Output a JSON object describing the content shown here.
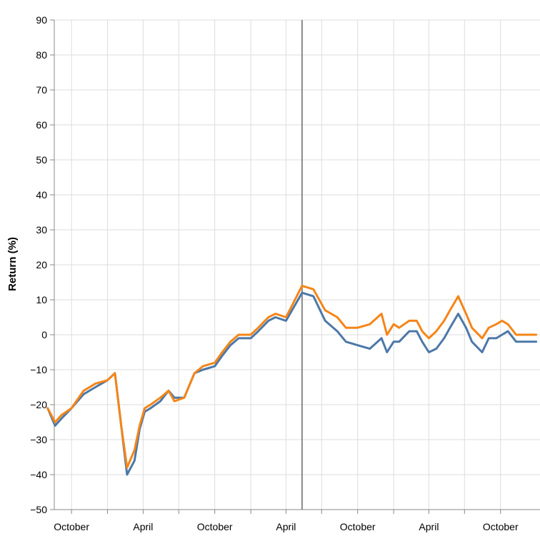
{
  "chart_data": {
    "type": "line",
    "title": "",
    "xlabel": "",
    "ylabel": "Return (%)",
    "ylim": [
      -50,
      90
    ],
    "yticks": [
      90,
      80,
      70,
      60,
      50,
      40,
      30,
      20,
      10,
      0,
      -10,
      -20,
      -30,
      -40,
      -50
    ],
    "ytick_labels": [
      "90",
      "80",
      "70",
      "60",
      "50",
      "40",
      "30",
      "20",
      "10",
      "0",
      "−10",
      "−20",
      "−30",
      "−40",
      "−50"
    ],
    "xlim": [
      "2019-08-01",
      "2022-12-31"
    ],
    "xtick_labels": [
      "October",
      "April",
      "October",
      "April",
      "October",
      "April",
      "October"
    ],
    "xtick_dates": [
      "2019-10-01",
      "2020-04-01",
      "2020-10-01",
      "2021-04-01",
      "2021-10-01",
      "2022-04-01",
      "2022-10-01"
    ],
    "x_gridlines": [
      "2019-10-01",
      "2020-01-01",
      "2020-04-01",
      "2020-07-01",
      "2020-10-01",
      "2021-01-01",
      "2021-04-01",
      "2021-07-01",
      "2021-10-01",
      "2022-01-01",
      "2022-04-01",
      "2022-07-01",
      "2022-10-01"
    ],
    "grid": true,
    "rule_date": "2021-05-12",
    "series": [
      {
        "color": "#4c78a8",
        "dates": [
          "2019-08-01",
          "2019-08-20",
          "2019-09-05",
          "2019-10-01",
          "2019-11-01",
          "2019-12-01",
          "2020-01-01",
          "2020-01-20",
          "2020-02-05",
          "2020-02-20",
          "2020-03-10",
          "2020-03-23",
          "2020-04-05",
          "2020-04-20",
          "2020-05-15",
          "2020-06-05",
          "2020-06-20",
          "2020-07-15",
          "2020-08-10",
          "2020-09-01",
          "2020-10-01",
          "2020-10-20",
          "2020-11-10",
          "2020-12-01",
          "2021-01-01",
          "2021-01-20",
          "2021-02-15",
          "2021-03-05",
          "2021-04-01",
          "2021-05-12",
          "2021-06-10",
          "2021-07-10",
          "2021-08-10",
          "2021-09-01",
          "2021-10-01",
          "2021-11-01",
          "2021-12-01",
          "2021-12-15",
          "2022-01-01",
          "2022-01-15",
          "2022-02-10",
          "2022-03-01",
          "2022-03-15",
          "2022-04-01",
          "2022-04-20",
          "2022-05-10",
          "2022-05-25",
          "2022-06-15",
          "2022-07-05",
          "2022-07-20",
          "2022-08-15",
          "2022-09-01",
          "2022-09-20",
          "2022-10-05",
          "2022-10-20",
          "2022-11-10",
          "2022-12-01",
          "2022-12-31"
        ],
        "values": [
          -21,
          -26,
          -24,
          -21,
          -17,
          -15,
          -13,
          -11,
          -26,
          -40,
          -36,
          -27,
          -22,
          -21,
          -19,
          -16,
          -18,
          -18,
          -11,
          -10,
          -9,
          -6,
          -3,
          -1,
          -1,
          1,
          4,
          5,
          4,
          12,
          11,
          4,
          1,
          -2,
          -3,
          -4,
          -1,
          -5,
          -2,
          -2,
          1,
          1,
          -2,
          -5,
          -4,
          -1,
          2,
          6,
          2,
          -2,
          -5,
          -1,
          -1,
          0,
          1,
          -2,
          -2,
          -2
        ]
      },
      {
        "color": "#f58518",
        "dates": [
          "2019-08-01",
          "2019-08-20",
          "2019-09-05",
          "2019-10-01",
          "2019-11-01",
          "2019-12-01",
          "2020-01-01",
          "2020-01-20",
          "2020-02-05",
          "2020-02-20",
          "2020-03-10",
          "2020-03-23",
          "2020-04-05",
          "2020-04-20",
          "2020-05-15",
          "2020-06-05",
          "2020-06-20",
          "2020-07-15",
          "2020-08-10",
          "2020-09-01",
          "2020-10-01",
          "2020-10-20",
          "2020-11-10",
          "2020-12-01",
          "2021-01-01",
          "2021-01-20",
          "2021-02-15",
          "2021-03-05",
          "2021-04-01",
          "2021-05-12",
          "2021-06-10",
          "2021-07-10",
          "2021-08-10",
          "2021-09-01",
          "2021-10-01",
          "2021-11-01",
          "2021-12-01",
          "2021-12-15",
          "2022-01-01",
          "2022-01-15",
          "2022-02-10",
          "2022-03-01",
          "2022-03-15",
          "2022-04-01",
          "2022-04-20",
          "2022-05-10",
          "2022-05-25",
          "2022-06-15",
          "2022-07-05",
          "2022-07-20",
          "2022-08-15",
          "2022-09-01",
          "2022-09-20",
          "2022-10-05",
          "2022-10-20",
          "2022-11-10",
          "2022-12-01",
          "2022-12-31"
        ],
        "values": [
          -21,
          -25,
          -23,
          -21,
          -16,
          -14,
          -13,
          -11,
          -26,
          -38,
          -33,
          -26,
          -21,
          -20,
          -18,
          -16,
          -19,
          -18,
          -11,
          -9,
          -8,
          -5,
          -2,
          0,
          0,
          2,
          5,
          6,
          5,
          14,
          13,
          7,
          5,
          2,
          2,
          3,
          6,
          0,
          3,
          2,
          4,
          4,
          1,
          -1,
          1,
          4,
          7,
          11,
          6,
          2,
          -1,
          2,
          3,
          4,
          3,
          0,
          0,
          0
        ]
      }
    ]
  }
}
